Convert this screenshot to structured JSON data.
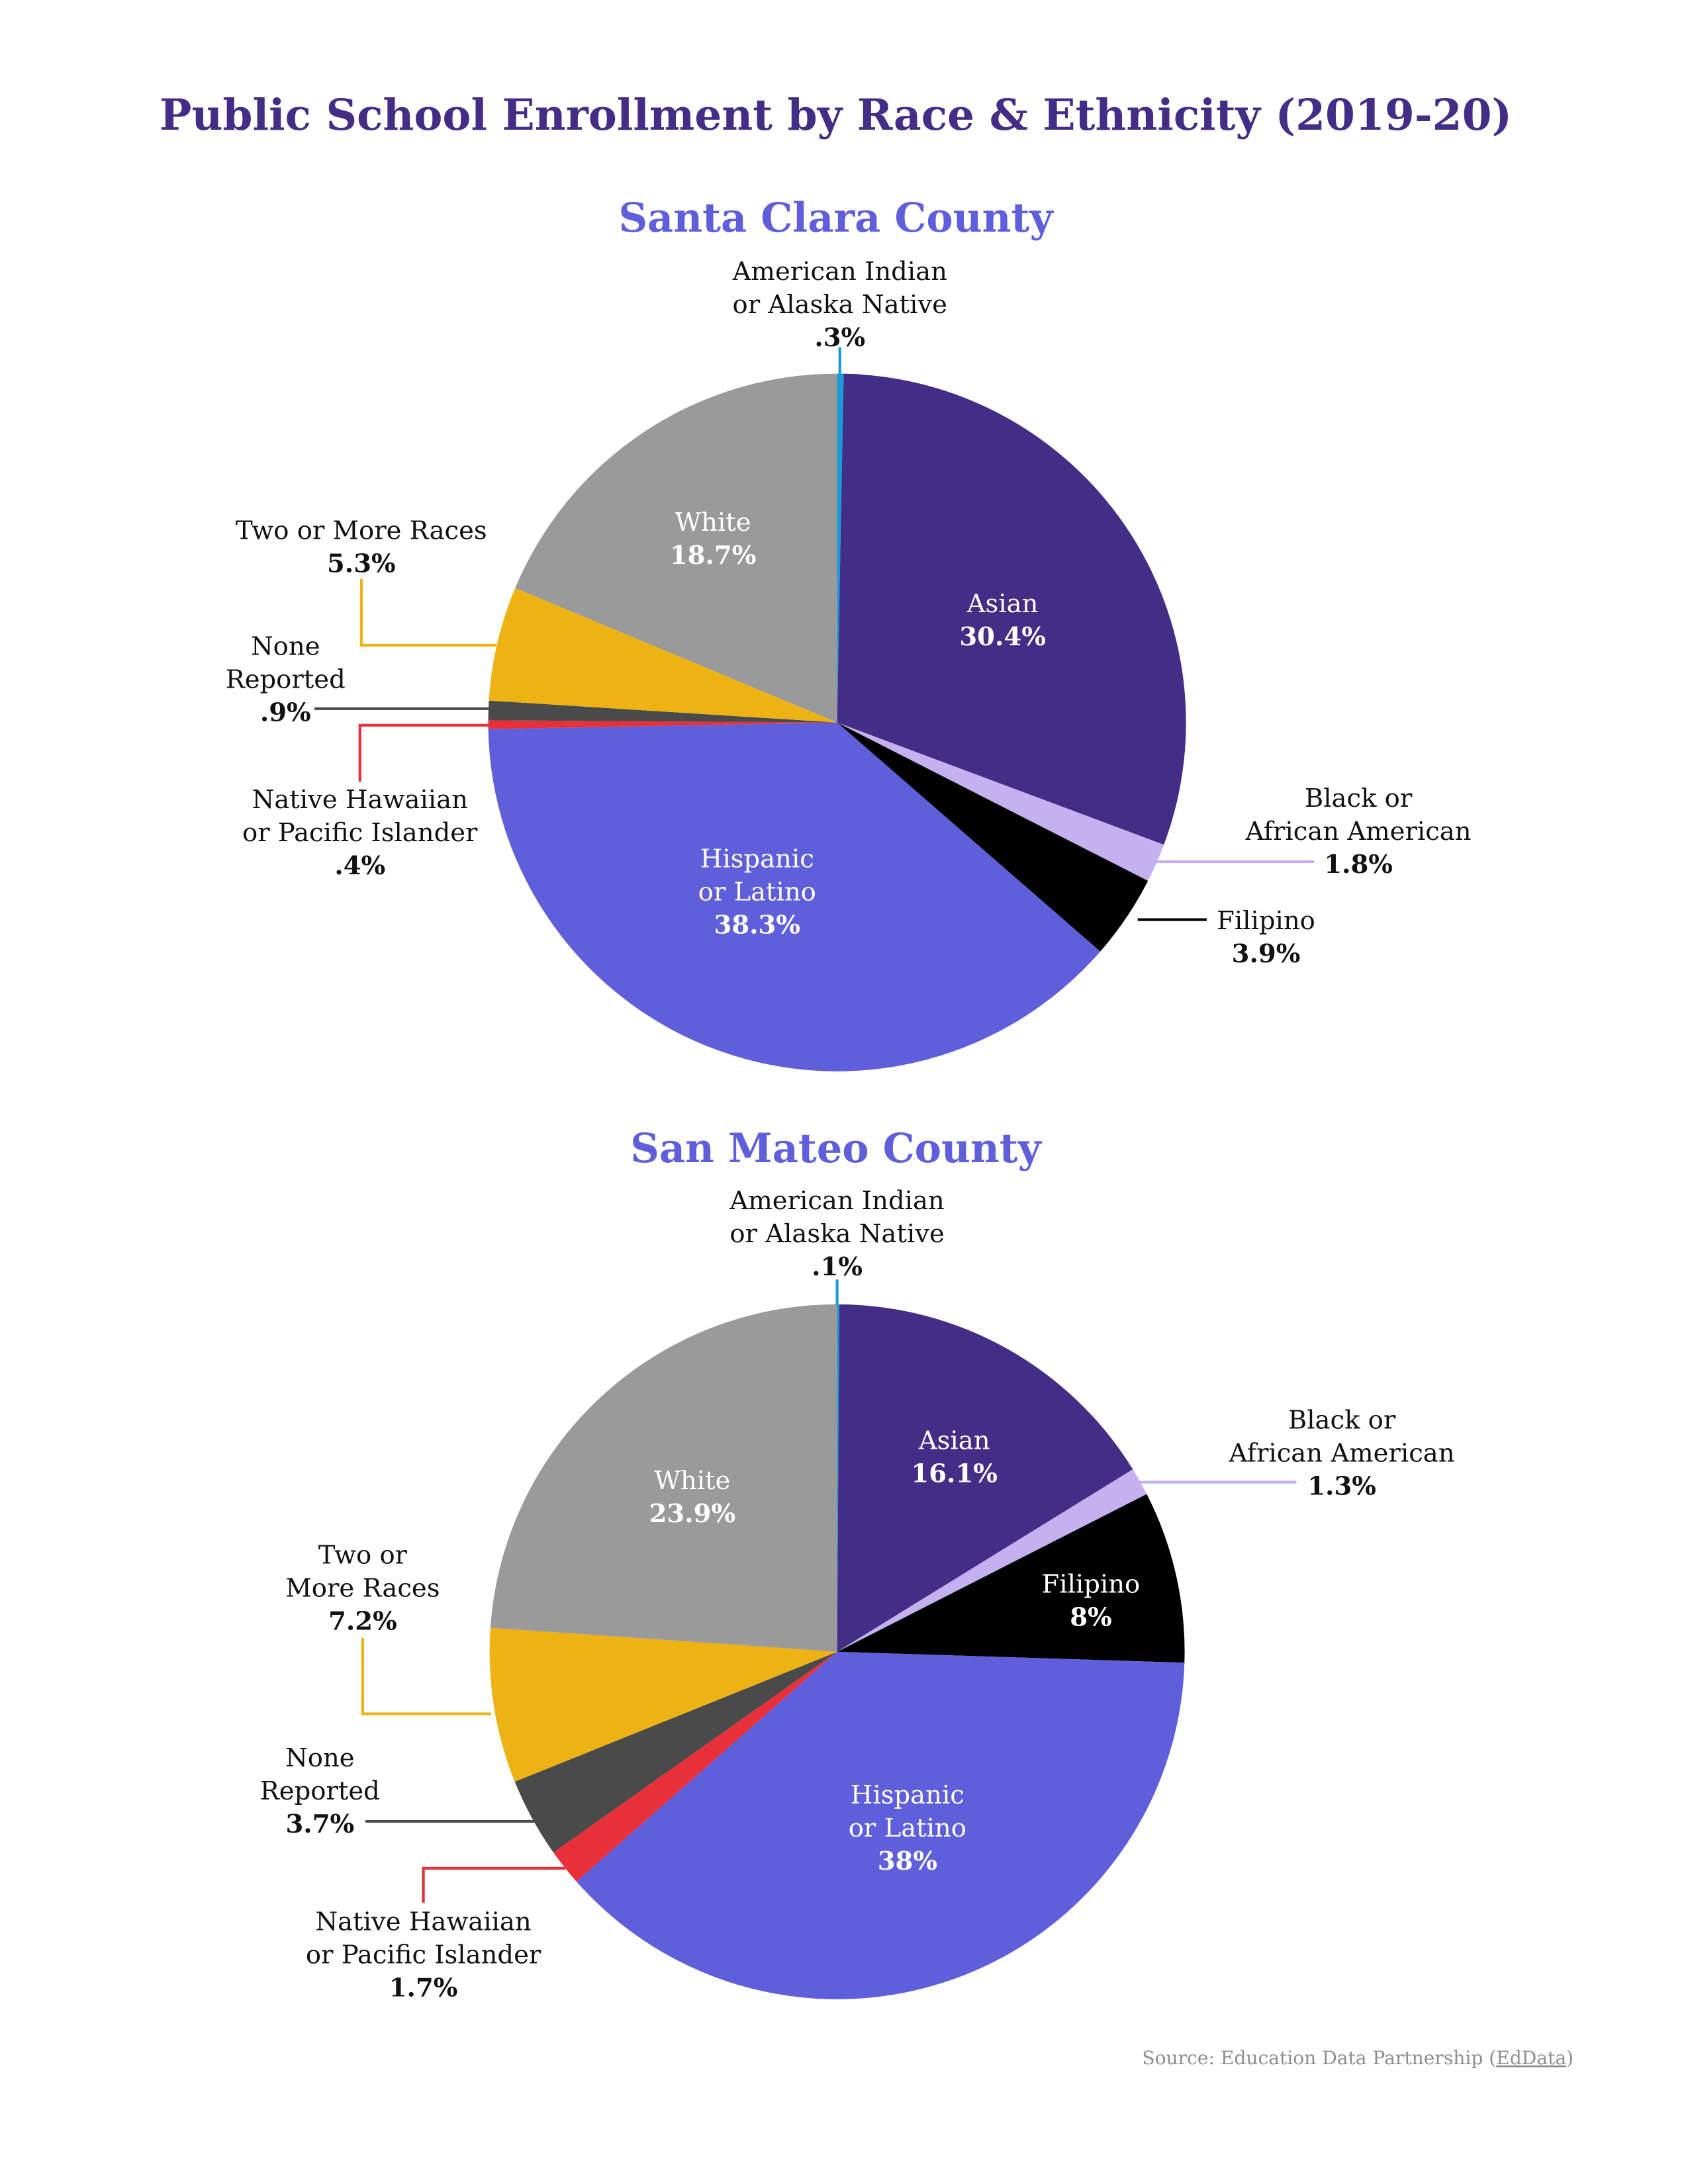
{
  "title": "Public School Enrollment by Race & Ethnicity (2019-20)",
  "source": {
    "prefix": "Source: Education Data Partnership (",
    "link": "EdData",
    "suffix": ")"
  },
  "colors": {
    "title": "#432d86",
    "subtitle": "#5f5fdc",
    "American Indian or Alaska Native": "#1a9ad6",
    "Asian": "#432d86",
    "Black or African American": "#c5b0f0",
    "Filipino": "#000000",
    "Hispanic or Latino": "#5f5fdc",
    "Native Hawaiian or Pacific Islander": "#e8303a",
    "None Reported": "#4a4a4a",
    "Two or More Races": "#edb214",
    "White": "#9a9a9a"
  },
  "chart_data": [
    {
      "type": "pie",
      "title": "Santa Clara County",
      "categories": [
        "American Indian or Alaska Native",
        "Asian",
        "Black or African American",
        "Filipino",
        "Hispanic or Latino",
        "Native Hawaiian or Pacific Islander",
        "None Reported",
        "Two or More Races",
        "White"
      ],
      "values": [
        0.3,
        30.4,
        1.8,
        3.9,
        38.3,
        0.4,
        0.9,
        5.3,
        18.7
      ],
      "labels": [
        {
          "lines": [
            "American Indian",
            "or Alaska Native"
          ],
          "value": ".3%"
        },
        {
          "lines": [
            "Asian"
          ],
          "value": "30.4%"
        },
        {
          "lines": [
            "Black or",
            "African American"
          ],
          "value": "1.8%"
        },
        {
          "lines": [
            "Filipino"
          ],
          "value": "3.9%"
        },
        {
          "lines": [
            "Hispanic",
            "or Latino"
          ],
          "value": "38.3%"
        },
        {
          "lines": [
            "Native Hawaiian",
            "or Pacific Islander"
          ],
          "value": ".4%"
        },
        {
          "lines": [
            "None",
            "Reported"
          ],
          "value": ".9%"
        },
        {
          "lines": [
            "Two or More Races"
          ],
          "value": "5.3%"
        },
        {
          "lines": [
            "White"
          ],
          "value": "18.7%"
        }
      ]
    },
    {
      "type": "pie",
      "title": "San Mateo County",
      "categories": [
        "American Indian or Alaska Native",
        "Asian",
        "Black or African American",
        "Filipino",
        "Hispanic or Latino",
        "Native Hawaiian or Pacific Islander",
        "None Reported",
        "Two or More Races",
        "White"
      ],
      "values": [
        0.1,
        16.1,
        1.3,
        8,
        38,
        1.7,
        3.7,
        7.2,
        23.9
      ],
      "labels": [
        {
          "lines": [
            "American Indian",
            "or Alaska Native"
          ],
          "value": ".1%"
        },
        {
          "lines": [
            "Asian"
          ],
          "value": "16.1%"
        },
        {
          "lines": [
            "Black or",
            "African American"
          ],
          "value": "1.3%"
        },
        {
          "lines": [
            "Filipino"
          ],
          "value": "8%"
        },
        {
          "lines": [
            "Hispanic",
            "or Latino"
          ],
          "value": "38%"
        },
        {
          "lines": [
            "Native Hawaiian",
            "or Pacific Islander"
          ],
          "value": "1.7%"
        },
        {
          "lines": [
            "None",
            "Reported"
          ],
          "value": "3.7%"
        },
        {
          "lines": [
            "Two or",
            "More Races"
          ],
          "value": "7.2%"
        },
        {
          "lines": [
            "White"
          ],
          "value": "23.9%"
        }
      ]
    }
  ]
}
